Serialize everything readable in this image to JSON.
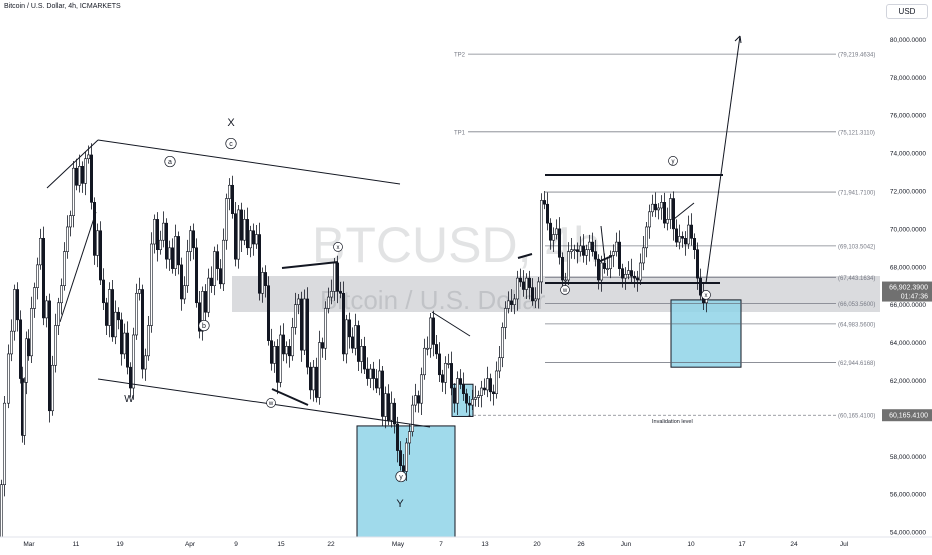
{
  "header": {
    "symbol_line": "Bitcoin / U.S. Dollar, 4h, ICMARKETS",
    "currency_button": "USD"
  },
  "watermark": {
    "ticker": "BTCUSD, 4h",
    "name": "Bitcoin / U.S. Dollar"
  },
  "colors": {
    "candle": "#131722",
    "zone_fill": "#8fd4e8",
    "gray_band": "#9598a1",
    "level_line": "#5d606b",
    "price_badge": "#707070"
  },
  "chart_data": {
    "type": "candlestick",
    "x_ticks": [
      "Mar",
      "11",
      "19",
      "Apr",
      "9",
      "15",
      "22",
      "May",
      "7",
      "13",
      "20",
      "26",
      "Jun",
      "10",
      "17",
      "24",
      "Jul"
    ],
    "y_ticks": [
      "54,000.0000",
      "56,000.0000",
      "58,000.0000",
      "62,000.0000",
      "64,000.0000",
      "66,000.0000",
      "68,000.0000",
      "70,000.0000",
      "72,000.0000",
      "74,000.0000",
      "76,000.0000",
      "78,000.0000",
      "80,000.0000"
    ],
    "ylim": [
      53000,
      80300
    ],
    "price_path": [
      [
        0,
        52800
      ],
      [
        3,
        56500
      ],
      [
        7,
        60800
      ],
      [
        10,
        63400
      ],
      [
        13,
        64600
      ],
      [
        16,
        66800
      ],
      [
        19,
        65200
      ],
      [
        21,
        62100
      ],
      [
        23,
        59100
      ],
      [
        25,
        61900
      ],
      [
        27,
        64200
      ],
      [
        30,
        63300
      ],
      [
        33,
        65800
      ],
      [
        36,
        66900
      ],
      [
        39,
        68100
      ],
      [
        42,
        69500
      ],
      [
        45,
        65300
      ],
      [
        48,
        66200
      ],
      [
        51,
        60400
      ],
      [
        54,
        62800
      ],
      [
        57,
        64900
      ],
      [
        60,
        66100
      ],
      [
        63,
        67000
      ],
      [
        66,
        68800
      ],
      [
        69,
        70100
      ],
      [
        72,
        70700
      ],
      [
        75,
        73200
      ],
      [
        78,
        72300
      ],
      [
        81,
        73300
      ],
      [
        84,
        72400
      ],
      [
        87,
        73700
      ],
      [
        90,
        73900
      ],
      [
        93,
        71400
      ],
      [
        96,
        68600
      ],
      [
        99,
        69900
      ],
      [
        102,
        67300
      ],
      [
        105,
        66100
      ],
      [
        108,
        64900
      ],
      [
        111,
        66800
      ],
      [
        114,
        64300
      ],
      [
        117,
        65600
      ],
      [
        120,
        65200
      ],
      [
        123,
        63400
      ],
      [
        126,
        64500
      ],
      [
        129,
        62700
      ],
      [
        132,
        61600
      ],
      [
        135,
        64400
      ],
      [
        138,
        66600
      ],
      [
        141,
        66800
      ],
      [
        144,
        62600
      ],
      [
        147,
        63300
      ],
      [
        150,
        64900
      ],
      [
        153,
        69200
      ],
      [
        156,
        70500
      ],
      [
        159,
        68900
      ],
      [
        162,
        69400
      ],
      [
        165,
        70300
      ],
      [
        168,
        68400
      ],
      [
        171,
        69000
      ],
      [
        174,
        67900
      ],
      [
        177,
        69600
      ],
      [
        180,
        68100
      ],
      [
        183,
        66300
      ],
      [
        186,
        67000
      ],
      [
        189,
        68800
      ],
      [
        192,
        69900
      ],
      [
        195,
        69000
      ],
      [
        198,
        66100
      ],
      [
        201,
        64600
      ],
      [
        204,
        66700
      ],
      [
        207,
        65600
      ],
      [
        210,
        67400
      ],
      [
        213,
        67000
      ],
      [
        216,
        68800
      ],
      [
        219,
        67900
      ],
      [
        222,
        67100
      ],
      [
        225,
        69400
      ],
      [
        228,
        71600
      ],
      [
        231,
        72300
      ],
      [
        234,
        70800
      ],
      [
        237,
        68400
      ],
      [
        240,
        71000
      ],
      [
        243,
        69400
      ],
      [
        246,
        70500
      ],
      [
        249,
        69000
      ],
      [
        252,
        69900
      ],
      [
        255,
        69200
      ],
      [
        258,
        69700
      ],
      [
        261,
        66600
      ],
      [
        264,
        67700
      ],
      [
        267,
        67000
      ],
      [
        270,
        64100
      ],
      [
        273,
        62900
      ],
      [
        276,
        63800
      ],
      [
        279,
        61900
      ],
      [
        282,
        64400
      ],
      [
        285,
        63400
      ],
      [
        288,
        63800
      ],
      [
        291,
        63300
      ],
      [
        294,
        64800
      ],
      [
        297,
        66000
      ],
      [
        300,
        66300
      ],
      [
        303,
        63600
      ],
      [
        306,
        66300
      ],
      [
        309,
        62700
      ],
      [
        312,
        61500
      ],
      [
        315,
        62700
      ],
      [
        318,
        61100
      ],
      [
        321,
        64000
      ],
      [
        324,
        63700
      ],
      [
        327,
        65800
      ],
      [
        330,
        66400
      ],
      [
        333,
        66700
      ],
      [
        336,
        68200
      ],
      [
        339,
        66700
      ],
      [
        342,
        66600
      ],
      [
        345,
        63400
      ],
      [
        348,
        65200
      ],
      [
        351,
        64300
      ],
      [
        354,
        63700
      ],
      [
        357,
        64900
      ],
      [
        360,
        63000
      ],
      [
        363,
        63800
      ],
      [
        366,
        62600
      ],
      [
        369,
        62100
      ],
      [
        372,
        62600
      ],
      [
        375,
        62100
      ],
      [
        378,
        61600
      ],
      [
        381,
        62500
      ],
      [
        384,
        60100
      ],
      [
        387,
        61300
      ],
      [
        390,
        59900
      ],
      [
        393,
        60800
      ],
      [
        396,
        59700
      ],
      [
        399,
        58300
      ],
      [
        402,
        57500
      ],
      [
        405,
        57200
      ],
      [
        408,
        58700
      ],
      [
        411,
        59300
      ],
      [
        414,
        60700
      ],
      [
        417,
        61200
      ],
      [
        420,
        60800
      ],
      [
        423,
        62300
      ],
      [
        426,
        63700
      ],
      [
        429,
        63700
      ],
      [
        432,
        65300
      ],
      [
        435,
        63900
      ],
      [
        438,
        63400
      ],
      [
        441,
        62300
      ],
      [
        444,
        61900
      ],
      [
        447,
        62900
      ],
      [
        450,
        62900
      ],
      [
        453,
        61600
      ],
      [
        456,
        60800
      ],
      [
        459,
        62100
      ],
      [
        462,
        61800
      ],
      [
        465,
        61300
      ],
      [
        468,
        60800
      ],
      [
        471,
        60700
      ],
      [
        474,
        61000
      ],
      [
        477,
        61100
      ],
      [
        480,
        61200
      ],
      [
        483,
        61600
      ],
      [
        486,
        61500
      ],
      [
        489,
        62100
      ],
      [
        492,
        61400
      ],
      [
        495,
        61300
      ],
      [
        498,
        62500
      ],
      [
        501,
        63200
      ],
      [
        504,
        64800
      ],
      [
        507,
        65800
      ],
      [
        510,
        66200
      ],
      [
        513,
        66000
      ],
      [
        516,
        66300
      ],
      [
        519,
        67400
      ],
      [
        522,
        67200
      ],
      [
        525,
        66800
      ],
      [
        528,
        67400
      ],
      [
        531,
        66900
      ],
      [
        534,
        66200
      ],
      [
        537,
        66300
      ],
      [
        540,
        67200
      ],
      [
        543,
        71500
      ],
      [
        546,
        71300
      ],
      [
        549,
        70300
      ],
      [
        552,
        69400
      ],
      [
        555,
        69700
      ],
      [
        558,
        70000
      ],
      [
        561,
        68500
      ],
      [
        564,
        67300
      ],
      [
        567,
        67300
      ],
      [
        570,
        68800
      ],
      [
        573,
        68900
      ],
      [
        576,
        68900
      ],
      [
        579,
        68800
      ],
      [
        582,
        69100
      ],
      [
        585,
        68600
      ],
      [
        588,
        68900
      ],
      [
        591,
        69300
      ],
      [
        594,
        68800
      ],
      [
        597,
        68400
      ],
      [
        600,
        67300
      ],
      [
        603,
        68200
      ],
      [
        606,
        67900
      ],
      [
        609,
        67900
      ],
      [
        612,
        68600
      ],
      [
        615,
        68800
      ],
      [
        618,
        69300
      ],
      [
        621,
        67900
      ],
      [
        624,
        67400
      ],
      [
        627,
        67600
      ],
      [
        630,
        67800
      ],
      [
        633,
        67500
      ],
      [
        636,
        67400
      ],
      [
        639,
        67300
      ],
      [
        642,
        68200
      ],
      [
        645,
        69000
      ],
      [
        648,
        70100
      ],
      [
        651,
        70900
      ],
      [
        654,
        71300
      ],
      [
        657,
        71000
      ],
      [
        660,
        71100
      ],
      [
        663,
        71400
      ],
      [
        666,
        70300
      ],
      [
        669,
        70500
      ],
      [
        672,
        71600
      ],
      [
        675,
        70000
      ],
      [
        678,
        69300
      ],
      [
        681,
        69600
      ],
      [
        684,
        69500
      ],
      [
        687,
        69200
      ],
      [
        690,
        70200
      ],
      [
        693,
        69500
      ],
      [
        696,
        68900
      ],
      [
        699,
        67400
      ],
      [
        702,
        66500
      ],
      [
        705,
        66100
      ],
      [
        708,
        66400
      ]
    ],
    "horizontal_levels": [
      {
        "label": "TP2",
        "value": "(79,219.4634)"
      },
      {
        "label": "TP1",
        "value": "(75,121.3110)"
      },
      {
        "label": "",
        "value": "(71,941.7100)"
      },
      {
        "label": "",
        "value": "(69,103.5042)"
      },
      {
        "label": "",
        "value": "(67,443.1634)"
      },
      {
        "label": "",
        "value": "(66,053.5600)"
      },
      {
        "label": "",
        "value": "(64,983.5600)"
      },
      {
        "label": "",
        "value": "(62,944.6168)"
      },
      {
        "label": "",
        "value": "(60,165.4100)"
      }
    ],
    "invalidation_label": "Invalidation level",
    "current_price": "66,902.3900",
    "countdown": "01:47:36",
    "invalidation_price": "60,165.4100",
    "wave_labels": [
      "X",
      "W",
      "Y",
      "a",
      "b",
      "c",
      "w",
      "x",
      "y",
      "w",
      "x",
      "y",
      "x"
    ]
  }
}
